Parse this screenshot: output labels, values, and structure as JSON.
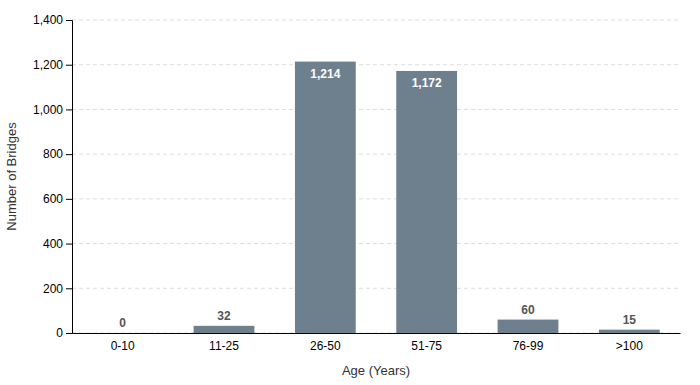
{
  "chart_data": {
    "type": "bar",
    "xlabel": "Age (Years)",
    "ylabel": "Number of Bridges",
    "categories": [
      "0-10",
      "11-25",
      "26-50",
      "51-75",
      "76-99",
      ">100"
    ],
    "values": [
      0,
      32,
      1214,
      1172,
      60,
      15
    ],
    "value_labels": [
      "0",
      "32",
      "1,214",
      "1,172",
      "60",
      "15"
    ],
    "color": "#6e7f8d",
    "ylim": [
      0,
      1400
    ],
    "yticks": [
      0,
      200,
      400,
      600,
      800,
      {
        "value": 1000,
        "label": "1,000"
      },
      {
        "value": 1200,
        "label": "1,200"
      },
      {
        "value": 1400,
        "label": "1,400"
      }
    ],
    "grid": true,
    "data_labels": true
  }
}
